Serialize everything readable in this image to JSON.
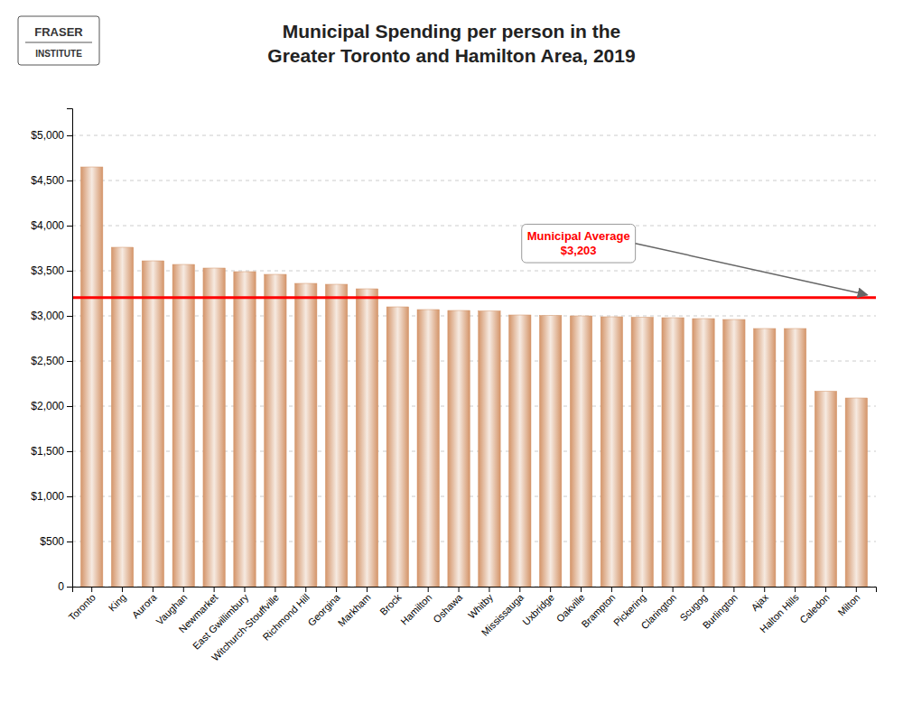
{
  "chart_data": {
    "type": "bar",
    "title": "Municipal Spending per person in the\nGreater Toronto and Hamilton Area, 2019",
    "categories": [
      "Toronto",
      "King",
      "Aurora",
      "Vaughan",
      "Newmarket",
      "East Gwillimbury",
      "Witchurch-Stouffville",
      "Richmond Hill",
      "Georgina",
      "Markham",
      "Brock",
      "Hamilton",
      "Oshawa",
      "Whitby",
      "Mississauga",
      "Uxbridge",
      "Oakville",
      "Brampton",
      "Pickering",
      "Clarington",
      "Scugog",
      "Burlington",
      "Ajax",
      "Halton Hills",
      "Caledon",
      "Milton"
    ],
    "values": [
      4650,
      3760,
      3610,
      3570,
      3530,
      3490,
      3460,
      3360,
      3350,
      3300,
      3100,
      3070,
      3060,
      3055,
      3010,
      3005,
      3000,
      2990,
      2985,
      2980,
      2970,
      2960,
      2860,
      2860,
      2165,
      2090
    ],
    "color": "#d4956a",
    "ylim": [
      0,
      5300
    ],
    "yticks": [
      0,
      {
        "value": 500,
        "label": "$500"
      },
      {
        "value": 1000,
        "label": "$1,000"
      },
      {
        "value": 1500,
        "label": "$1,500"
      },
      {
        "value": 2000,
        "label": "$2,000"
      },
      {
        "value": 2500,
        "label": "$2,500"
      },
      {
        "value": 3000,
        "label": "$3,000"
      },
      {
        "value": 3500,
        "label": "$3,500"
      },
      {
        "value": 4000,
        "label": "$4,000"
      },
      {
        "value": 4500,
        "label": "$4,500"
      },
      {
        "value": 5000,
        "label": "$5,000"
      }
    ],
    "grid": true,
    "reference_lines": [
      {
        "value": 3203,
        "label": "Municipal Average\n$3,203",
        "color": "#ff0000"
      }
    ],
    "annotations": [
      "FRASER",
      "INSTITUTE"
    ]
  }
}
